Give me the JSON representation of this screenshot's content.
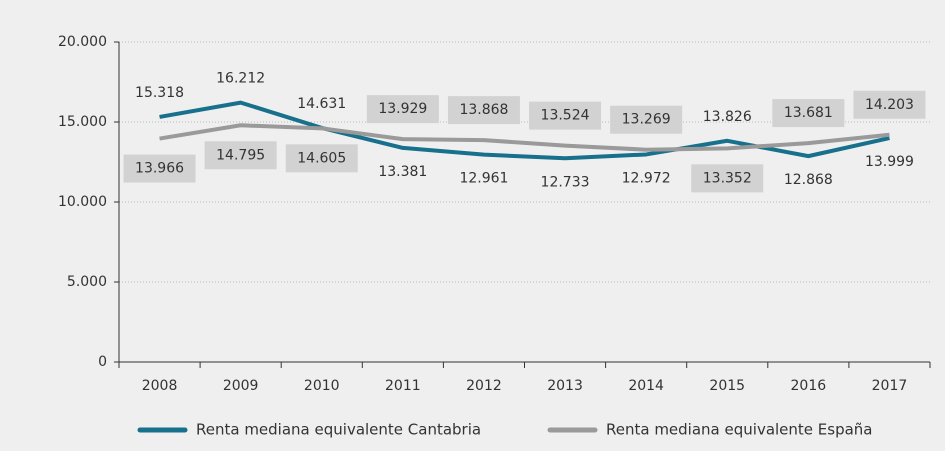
{
  "chart_data": {
    "type": "line",
    "categories": [
      "2008",
      "2009",
      "2010",
      "2011",
      "2012",
      "2013",
      "2014",
      "2015",
      "2016",
      "2017"
    ],
    "series": [
      {
        "name": "Renta mediana equivalente Cantabria",
        "color": "#17708c",
        "values": [
          15318,
          16212,
          14631,
          13381,
          12961,
          12733,
          12972,
          13826,
          12868,
          13999
        ],
        "value_labels": [
          "15.318",
          "16.212",
          "14.631",
          "13.381",
          "12.961",
          "12.733",
          "12.972",
          "13.826",
          "12.868",
          "13.999"
        ]
      },
      {
        "name": "Renta mediana equivalente España",
        "color": "#9a9a9a",
        "values": [
          13966,
          14795,
          14605,
          13929,
          13868,
          13524,
          13269,
          13352,
          13681,
          14203
        ],
        "value_labels": [
          "13.966",
          "14.795",
          "14.605",
          "13.929",
          "13.868",
          "13.524",
          "13.269",
          "13.352",
          "13.681",
          "14.203"
        ]
      }
    ],
    "ylim": [
      0,
      20000
    ],
    "yticks": [
      0,
      {
        "value": 5000,
        "label": "5.000"
      },
      {
        "value": 10000,
        "label": "10.000"
      },
      {
        "value": 15000,
        "label": "15.000"
      },
      {
        "value": 20000,
        "label": "20.000"
      }
    ],
    "grid": true,
    "legend": "bottom"
  }
}
